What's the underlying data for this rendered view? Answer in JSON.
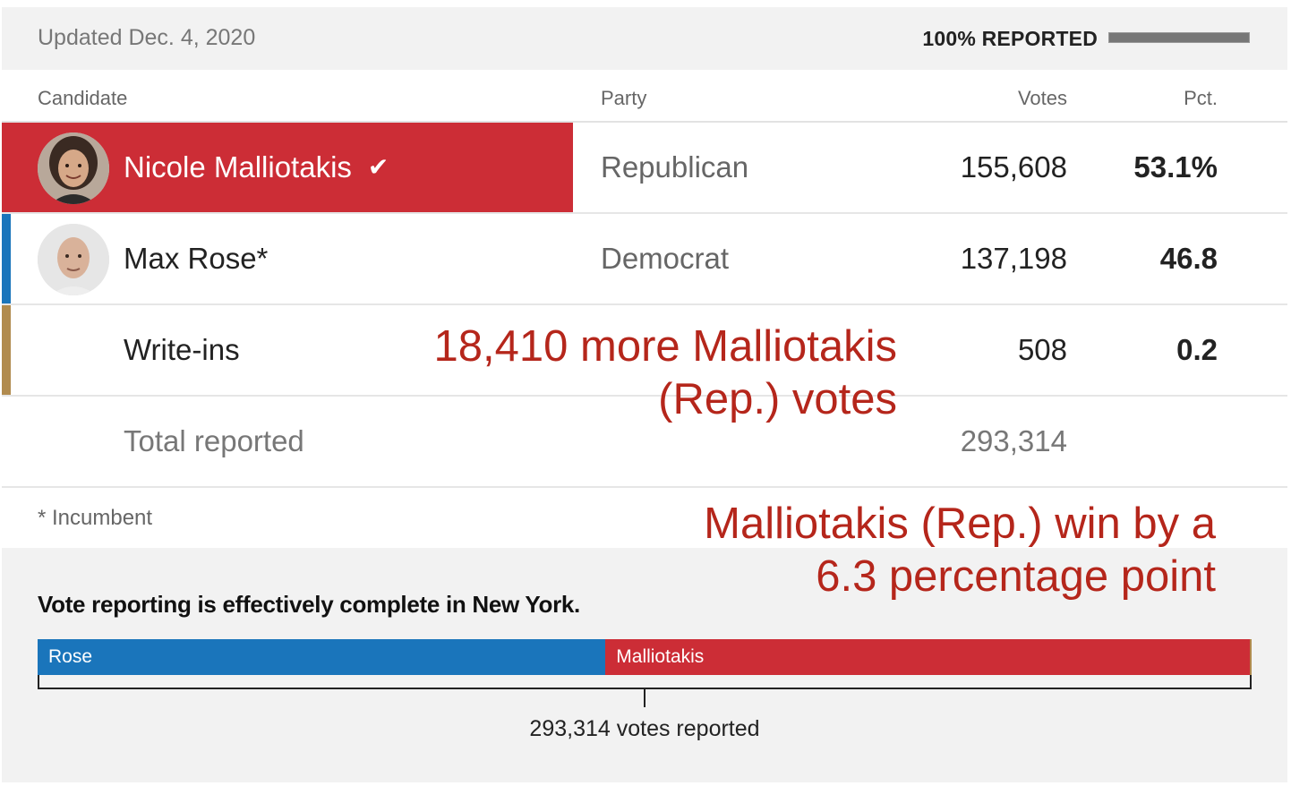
{
  "header": {
    "updated": "Updated Dec. 4, 2020",
    "reported_label": "100% REPORTED",
    "reported_fraction": 1.0
  },
  "columns": {
    "candidate": "Candidate",
    "party": "Party",
    "votes": "Votes",
    "pct": "Pct."
  },
  "rows": [
    {
      "name": "Nicole Malliotakis",
      "party": "Republican",
      "votes": "155,608",
      "pct": "53.1%",
      "winner": true,
      "check_icon": "checkmark-icon",
      "color": "#cc2d36"
    },
    {
      "name": "Max Rose*",
      "party": "Democrat",
      "votes": "137,198",
      "pct": "46.8",
      "winner": false,
      "color": "#1a75bb"
    },
    {
      "name": "Write-ins",
      "party": "",
      "votes": "508",
      "pct": "0.2",
      "winner": false,
      "color": "#b18b4e"
    }
  ],
  "total": {
    "label": "Total reported",
    "votes": "293,314"
  },
  "footnote": "* Incumbent",
  "bottom": {
    "status": "Vote reporting is effectively complete in New York.",
    "bar": [
      {
        "label": "Rose",
        "value": 137198,
        "color": "#1a75bb"
      },
      {
        "label": "Malliotakis",
        "value": 155608,
        "color": "#cc2d36"
      },
      {
        "label": "",
        "value": 508,
        "color": "#b18b4e"
      }
    ],
    "votes_reported": "293,314 votes reported"
  },
  "annotations": {
    "margin_votes": "18,410 more Malliotakis (Rep.) votes",
    "margin_points": "Malliotakis (Rep.) win by a 6.3 percentage point"
  },
  "colors": {
    "republican": "#cc2d36",
    "democrat": "#1a75bb",
    "writein": "#b18b4e",
    "annotation": "#b5261b"
  }
}
